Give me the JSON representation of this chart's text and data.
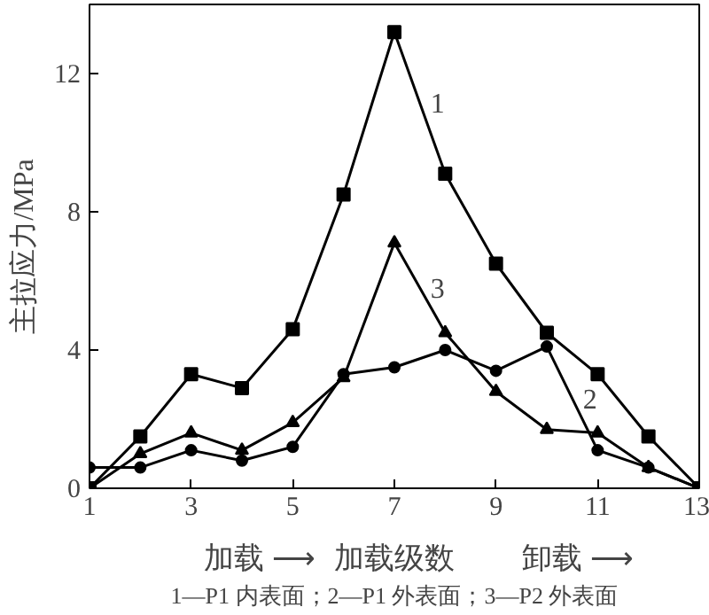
{
  "chart_data": {
    "type": "line",
    "xlabel": "加载级数",
    "ylabel": "主拉应力/MPa",
    "x": [
      1,
      2,
      3,
      4,
      5,
      6,
      7,
      8,
      9,
      10,
      11,
      12,
      13
    ],
    "series": [
      {
        "name": "1",
        "color": "#000000",
        "marker": "square",
        "values": [
          0,
          1.5,
          3.3,
          2.9,
          4.6,
          8.5,
          13.2,
          9.1,
          6.5,
          4.5,
          3.3,
          1.5,
          0
        ]
      },
      {
        "name": "2",
        "color": "#000000",
        "marker": "circle",
        "values": [
          0.6,
          0.6,
          1.1,
          0.8,
          1.2,
          3.3,
          3.5,
          4.0,
          3.4,
          4.1,
          1.1,
          0.6,
          0
        ]
      },
      {
        "name": "3",
        "color": "#000000",
        "marker": "triangle",
        "values": [
          0,
          1.0,
          1.6,
          1.1,
          1.9,
          3.2,
          7.1,
          4.5,
          2.8,
          1.7,
          1.6,
          0.6,
          0
        ]
      }
    ],
    "xlim": [
      1,
      13
    ],
    "ylim": [
      0,
      14
    ],
    "xticks": [
      1,
      3,
      5,
      7,
      9,
      11,
      13
    ],
    "yticks": [
      0,
      4,
      8,
      12
    ],
    "grid": false,
    "legend": false,
    "line_style": "solid",
    "annotations": [
      "加载 ⟶",
      "卸载 ⟶",
      "1—P1 内表面；2—P1 外表面；3—P2 外表面"
    ]
  }
}
